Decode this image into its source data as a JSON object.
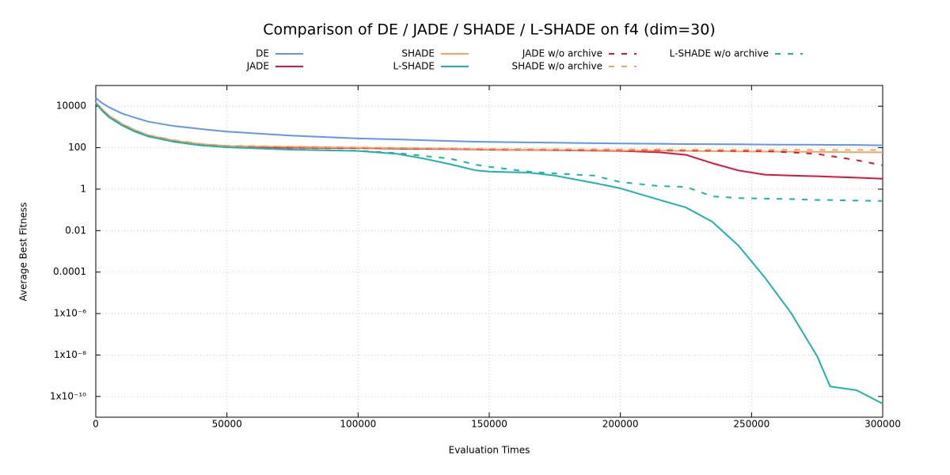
{
  "chart_data": {
    "type": "line",
    "title": "Comparison of DE / JADE / SHADE / L-SHADE on f4 (dim=30)",
    "x_label": "Evaluation Times",
    "y_label": "Average Best Fitness",
    "yscale": "log",
    "grid": true,
    "legend": "top",
    "xlim": [
      0,
      300000
    ],
    "xticks": [
      0,
      50000,
      100000,
      150000,
      200000,
      250000,
      300000
    ],
    "ylim": [
      1e-11,
      100000
    ],
    "yticks": [
      {
        "value": 1e-10,
        "label": "1x10⁻¹⁰"
      },
      {
        "value": 1e-08,
        "label": "1x10⁻⁸"
      },
      {
        "value": 1e-06,
        "label": "1x10⁻⁶"
      },
      0.0001,
      0.01,
      1,
      100,
      10000
    ],
    "x": [
      0,
      2500,
      5000,
      10000,
      15000,
      20000,
      30000,
      40000,
      50000,
      75000,
      100000,
      115000,
      125000,
      135000,
      145000,
      150000,
      165000,
      175000,
      190000,
      200000,
      215000,
      225000,
      235000,
      245000,
      255000,
      265000,
      275000,
      280000,
      290000,
      300000
    ],
    "series": [
      {
        "name": "DE",
        "color": "#6495ed",
        "dashed": false,
        "values": [
          25000,
          14000,
          9000,
          4500,
          2800,
          1800,
          1100,
          800,
          600,
          380,
          280,
          250,
          230,
          210,
          195,
          190,
          180,
          175,
          165,
          160,
          155,
          150,
          148,
          145,
          142,
          140,
          138,
          137,
          135,
          130
        ]
      },
      {
        "name": "JADE",
        "color": "#dc143c",
        "dashed": false,
        "values": [
          15000,
          6000,
          3000,
          1200,
          600,
          350,
          200,
          140,
          110,
          100,
          95,
          90,
          88,
          86,
          82,
          80,
          78,
          76,
          72,
          70,
          60,
          45,
          18,
          8,
          5,
          4.5,
          4.2,
          4,
          3.6,
          3.2
        ]
      },
      {
        "name": "SHADE",
        "color": "#f4a460",
        "dashed": false,
        "values": [
          15000,
          7000,
          3500,
          1400,
          700,
          400,
          220,
          150,
          120,
          110,
          100,
          95,
          92,
          90,
          85,
          82,
          80,
          78,
          75,
          73,
          72,
          70,
          68,
          66,
          65,
          64,
          63,
          62,
          61,
          60
        ]
      },
      {
        "name": "L-SHADE",
        "color": "#20b2aa",
        "dashed": false,
        "values": [
          14000,
          6000,
          3000,
          1200,
          600,
          350,
          190,
          130,
          105,
          80,
          70,
          50,
          30,
          16,
          8,
          7,
          6.3,
          4.5,
          2,
          1.1,
          0.3,
          0.13,
          0.027,
          0.0019,
          5.6e-05,
          1.1e-06,
          8.7e-09,
          3e-10,
          2e-10,
          4.5e-11
        ]
      },
      {
        "name": "JADE w/o archive",
        "color": "#dc143c",
        "dashed": true,
        "values": [
          15000,
          6500,
          3200,
          1300,
          650,
          380,
          210,
          145,
          115,
          105,
          98,
          93,
          90,
          88,
          85,
          83,
          82,
          80,
          78,
          77,
          76,
          74,
          72,
          70,
          68,
          60,
          50,
          40,
          25,
          14
        ]
      },
      {
        "name": "SHADE w/o archive",
        "color": "#f4a460",
        "dashed": true,
        "values": [
          15000,
          7000,
          3600,
          1400,
          700,
          400,
          230,
          155,
          125,
          112,
          103,
          98,
          95,
          92,
          90,
          88,
          86,
          85,
          84,
          83,
          82,
          81,
          80,
          80,
          79,
          79,
          78,
          78,
          78,
          77
        ]
      },
      {
        "name": "L-SHADE w/o archive",
        "color": "#20b2aa",
        "dashed": true,
        "values": [
          14000,
          6200,
          3100,
          1250,
          620,
          360,
          195,
          132,
          107,
          82,
          72,
          55,
          40,
          30,
          15,
          12,
          7,
          5.7,
          4.5,
          2.2,
          1.4,
          1.3,
          0.45,
          0.37,
          0.35,
          0.33,
          0.3,
          0.3,
          0.28,
          0.27
        ]
      }
    ]
  }
}
